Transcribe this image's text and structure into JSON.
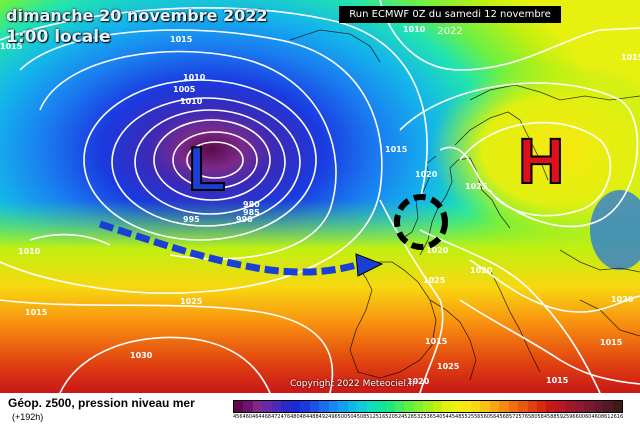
{
  "header": {
    "date_line": "dimanche 20 novembre 2022",
    "time_line": "1:00 locale",
    "run_label": "Run ECMWF 0Z du samedi 12 novembre 2022"
  },
  "map": {
    "low_symbol": "L",
    "high_symbol": "H",
    "low_color": "#1a3fd6",
    "high_color": "#e0101a",
    "arrow_color": "#1a3fd6",
    "circle_color": "#000000",
    "isobar_labels": [
      "1015",
      "1010",
      "1005",
      "1010",
      "1015",
      "995",
      "985",
      "990",
      "980",
      "1010",
      "1025",
      "1030",
      "1015",
      "1020",
      "1025",
      "1020",
      "1020",
      "1025",
      "1020",
      "1015",
      "1015",
      "1025",
      "1020",
      "1015",
      "1015",
      "1010",
      "1015"
    ]
  },
  "copyright": "Copyright 2022 Meteociel.fr",
  "footer": {
    "product": "Géop. z500, pression niveau mer",
    "lead": "(+192h)"
  },
  "legend": {
    "labels": [
      "456",
      "460",
      "464",
      "468",
      "472",
      "476",
      "480",
      "484",
      "488",
      "492",
      "496",
      "500",
      "504",
      "508",
      "512",
      "516",
      "520",
      "524",
      "528",
      "532",
      "536",
      "540",
      "544",
      "548",
      "552",
      "556",
      "560",
      "564",
      "568",
      "572",
      "576",
      "580",
      "584",
      "588",
      "592",
      "596",
      "600",
      "604",
      "608",
      "612",
      "616"
    ],
    "colors": [
      "#5c0a4a",
      "#6e1470",
      "#7e2a8a",
      "#6a2aa8",
      "#4a2ab8",
      "#2a2ac8",
      "#1a2ad8",
      "#1a3ae0",
      "#1a52e8",
      "#1a6cf0",
      "#1a86f4",
      "#14a0f0",
      "#10b8e8",
      "#10ccd8",
      "#10dcc0",
      "#10e4a0",
      "#20e880",
      "#40ec60",
      "#60f040",
      "#80f030",
      "#a0f020",
      "#c0f010",
      "#e0f010",
      "#f0f010",
      "#f8e810",
      "#f8d810",
      "#f8c410",
      "#f8a810",
      "#f88c10",
      "#f07010",
      "#e85810",
      "#e04010",
      "#d82810",
      "#c81818",
      "#b81820",
      "#a01828",
      "#901830",
      "#7c1830",
      "#681830",
      "#541828",
      "#401818"
    ]
  }
}
